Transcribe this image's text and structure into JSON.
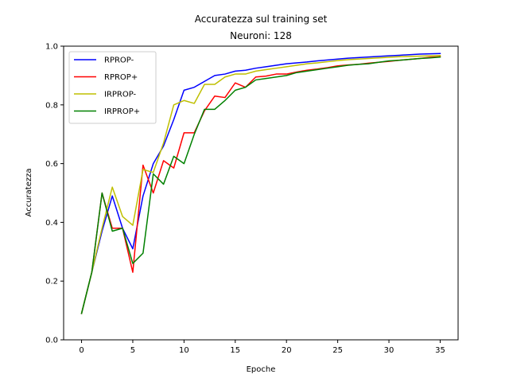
{
  "chart_data": {
    "type": "line",
    "title": "Accuratezza sul training set",
    "subtitle": "Neuroni: 128",
    "xlabel": "Epoche",
    "ylabel": "Accuratezza",
    "xlim": [
      -1.75,
      36.75
    ],
    "ylim": [
      0.0,
      1.0
    ],
    "xticks": [
      0,
      5,
      10,
      15,
      20,
      25,
      30,
      35
    ],
    "yticks": [
      0.0,
      0.2,
      0.4,
      0.6,
      0.8,
      1.0
    ],
    "grid": false,
    "legend_position": "top-left",
    "x": [
      0,
      1,
      2,
      3,
      4,
      5,
      6,
      7,
      8,
      9,
      10,
      11,
      12,
      13,
      14,
      15,
      16,
      17,
      18,
      19,
      20,
      21,
      22,
      23,
      24,
      25,
      26,
      27,
      28,
      29,
      30,
      31,
      32,
      33,
      34,
      35
    ],
    "series": [
      {
        "name": "RPROP-",
        "color": "#0000ff",
        "values": [
          0.09,
          0.23,
          0.37,
          0.49,
          0.38,
          0.31,
          0.49,
          0.6,
          0.66,
          0.75,
          0.85,
          0.86,
          0.88,
          0.9,
          0.905,
          0.915,
          0.918,
          0.925,
          0.93,
          0.935,
          0.94,
          0.943,
          0.946,
          0.95,
          0.953,
          0.956,
          0.959,
          0.961,
          0.963,
          0.965,
          0.967,
          0.969,
          0.971,
          0.973,
          0.974,
          0.975
        ]
      },
      {
        "name": "RPROP+",
        "color": "#ff0000",
        "values": [
          0.09,
          0.23,
          0.5,
          0.38,
          0.38,
          0.23,
          0.595,
          0.5,
          0.61,
          0.585,
          0.705,
          0.705,
          0.78,
          0.83,
          0.825,
          0.875,
          0.86,
          0.895,
          0.898,
          0.905,
          0.905,
          0.912,
          0.918,
          0.922,
          0.927,
          0.933,
          0.936,
          0.938,
          0.942,
          0.945,
          0.948,
          0.952,
          0.955,
          0.958,
          0.962,
          0.964
        ]
      },
      {
        "name": "IRPROP-",
        "color": "#bfbf00",
        "values": [
          0.09,
          0.23,
          0.38,
          0.52,
          0.42,
          0.39,
          0.58,
          0.57,
          0.67,
          0.8,
          0.815,
          0.805,
          0.87,
          0.87,
          0.895,
          0.905,
          0.905,
          0.915,
          0.92,
          0.925,
          0.93,
          0.935,
          0.94,
          0.943,
          0.947,
          0.951,
          0.954,
          0.956,
          0.958,
          0.96,
          0.962,
          0.964,
          0.965,
          0.966,
          0.967,
          0.968
        ]
      },
      {
        "name": "IRPROP+",
        "color": "#008000",
        "values": [
          0.09,
          0.23,
          0.5,
          0.37,
          0.38,
          0.26,
          0.295,
          0.565,
          0.53,
          0.625,
          0.6,
          0.7,
          0.785,
          0.785,
          0.815,
          0.85,
          0.86,
          0.885,
          0.89,
          0.895,
          0.9,
          0.91,
          0.915,
          0.92,
          0.925,
          0.93,
          0.935,
          0.938,
          0.94,
          0.945,
          0.95,
          0.952,
          0.955,
          0.958,
          0.96,
          0.963
        ]
      }
    ]
  }
}
